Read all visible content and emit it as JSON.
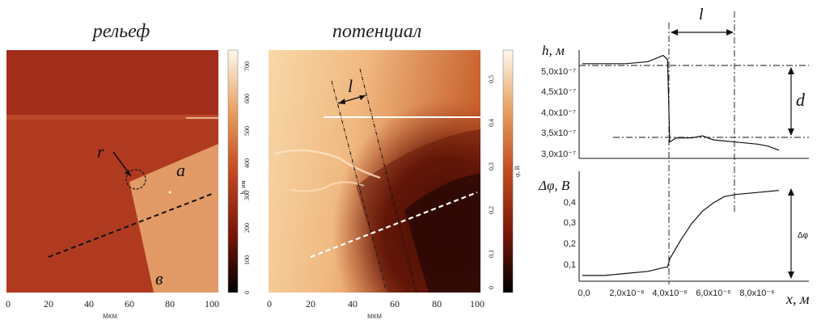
{
  "panels": {
    "relief": {
      "title": "рельеф",
      "x_ticks": [
        "0",
        "20",
        "40",
        "60",
        "80",
        "100"
      ],
      "x_unit": "мкм",
      "colorbar_ticks": [
        "0",
        "100",
        "200",
        "300",
        "400",
        "500",
        "600",
        "700"
      ],
      "colorbar_label": "h, нм",
      "labels": {
        "r": "r",
        "a": "a",
        "b": "в"
      }
    },
    "potential": {
      "title": "потенциал",
      "x_ticks": [
        "0",
        "20",
        "40",
        "60",
        "80",
        "100"
      ],
      "x_unit": "мкм",
      "colorbar_ticks": [
        "0",
        "0,1",
        "0,2",
        "0,3",
        "0,4",
        "0,5"
      ],
      "colorbar_label": "φ, В",
      "labels": {
        "l": "l"
      }
    },
    "profiles": {
      "top_ylabel": "h, м",
      "top_yticks": [
        "5,0x10⁻⁷",
        "4,5x10⁻⁷",
        "4,0x10⁻⁷",
        "3,5x10⁻⁷",
        "3,0x10⁻⁷"
      ],
      "bottom_ylabel": "Δφ, В",
      "bottom_yticks": [
        "0,4",
        "0,3",
        "0,2",
        "0,1"
      ],
      "xticks": [
        "0,0",
        "2,0x10⁻⁶",
        "4,0x10⁻⁶",
        "6,0x10⁻⁶",
        "8,0x10⁻⁶"
      ],
      "xlabel": "x, м",
      "annotations": {
        "l": "l",
        "d": "d",
        "dphi": "Δφ"
      }
    }
  },
  "chart_data": [
    {
      "type": "line",
      "xlabel": "x, м",
      "ylabel": "h, м",
      "ylim": [
        2.9e-07,
        5.5e-07
      ],
      "x": [
        0,
        1e-06,
        2e-06,
        3e-06,
        3.7e-06,
        3.9e-06,
        4e-06,
        4.3e-06,
        5e-06,
        5.5e-06,
        6e-06,
        7e-06,
        8e-06,
        8.5e-06,
        9e-06
      ],
      "series": [
        {
          "values": [
            5.2e-07,
            5.2e-07,
            5.2e-07,
            5.25e-07,
            5.4e-07,
            5.3e-07,
            3.3e-07,
            3.4e-07,
            3.4e-07,
            3.45e-07,
            3.35e-07,
            3.3e-07,
            3.25e-07,
            3.2e-07,
            3.1e-07
          ]
        }
      ]
    },
    {
      "type": "line",
      "xlabel": "x, м",
      "ylabel": "Δφ, В",
      "ylim": [
        0,
        0.5
      ],
      "x": [
        0,
        1e-06,
        2e-06,
        3e-06,
        3.8e-06,
        3.9e-06,
        4e-06,
        4.5e-06,
        5e-06,
        5.5e-06,
        6e-06,
        6.5e-06,
        7e-06,
        8e-06,
        9e-06
      ],
      "series": [
        {
          "values": [
            0.05,
            0.05,
            0.06,
            0.07,
            0.09,
            0.09,
            0.13,
            0.22,
            0.3,
            0.36,
            0.4,
            0.43,
            0.44,
            0.45,
            0.46
          ]
        }
      ]
    }
  ],
  "colors": {
    "relief_dark": "#a32e1c",
    "relief_light": "#e29a66",
    "potential_light": "#f6cf9e",
    "potential_dark": "#2a0805",
    "line": "#111111"
  }
}
